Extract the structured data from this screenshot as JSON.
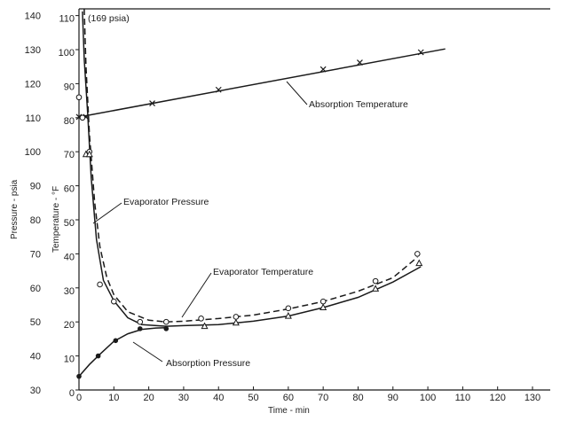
{
  "chart_data": {
    "type": "line",
    "title": "",
    "xlabel": "Time - min",
    "ylabel_left_outer": "Pressure - psia",
    "ylabel_left_inner": "Temperature - °F",
    "xlim": [
      0,
      130
    ],
    "ylim_pressure": [
      30,
      145
    ],
    "ylim_temperature": [
      0,
      115
    ],
    "x_ticks": [
      "0",
      "10",
      "20",
      "30",
      "40",
      "50",
      "60",
      "70",
      "80",
      "90",
      "100",
      "110",
      "120",
      "130"
    ],
    "pressure_ticks": [
      "30",
      "40",
      "50",
      "60",
      "70",
      "80",
      "90",
      "100",
      "110",
      "120",
      "130",
      "140"
    ],
    "temperature_ticks": [
      "0",
      "10",
      "20",
      "30",
      "40",
      "50",
      "60",
      "70",
      "80",
      "90",
      "100",
      "110"
    ],
    "annotations": {
      "peak": "(169 psia)",
      "absorption_temperature": "Absorption Temperature",
      "evaporator_pressure": "Evaporator Pressure",
      "evaporator_temperature": "Evaporator Temperature",
      "absorption_pressure": "Absorption Pressure"
    },
    "series": [
      {
        "name": "Absorption Temperature",
        "axis": "temperature",
        "style": "solid",
        "marker": "x",
        "points": [
          [
            0,
            81
          ],
          [
            2,
            81
          ],
          [
            21,
            85
          ],
          [
            40,
            89
          ],
          [
            70,
            95
          ],
          [
            80.5,
            97
          ],
          [
            98,
            100
          ]
        ],
        "line": [
          [
            0,
            81
          ],
          [
            105,
            101
          ]
        ]
      },
      {
        "name": "Evaporator Pressure",
        "axis": "pressure",
        "style": "dashed",
        "marker": "o",
        "points": [
          [
            0,
            116
          ],
          [
            1,
            110
          ],
          [
            3,
            100
          ],
          [
            6,
            61
          ],
          [
            10,
            56
          ],
          [
            17.5,
            50
          ],
          [
            25,
            50
          ],
          [
            35,
            51
          ],
          [
            45,
            51.5
          ],
          [
            60,
            54
          ],
          [
            70,
            56
          ],
          [
            85,
            62
          ],
          [
            97,
            70
          ]
        ],
        "line": [
          [
            1.5,
            145
          ],
          [
            2,
            125
          ],
          [
            3,
            105
          ],
          [
            4.5,
            85
          ],
          [
            6,
            72
          ],
          [
            8,
            63
          ],
          [
            10,
            58
          ],
          [
            14,
            53
          ],
          [
            20,
            50.5
          ],
          [
            25,
            50
          ],
          [
            30,
            50.2
          ],
          [
            40,
            51
          ],
          [
            50,
            52
          ],
          [
            60,
            53.8
          ],
          [
            70,
            56
          ],
          [
            80,
            59
          ],
          [
            90,
            63
          ],
          [
            97,
            69
          ]
        ]
      },
      {
        "name": "Evaporator Temperature",
        "axis": "temperature",
        "style": "solid",
        "marker": "triangle",
        "points": [
          [
            2,
            70
          ],
          [
            3,
            70
          ],
          [
            36,
            19.5
          ],
          [
            45,
            20.5
          ],
          [
            60,
            22.5
          ],
          [
            70,
            25
          ],
          [
            85,
            30.5
          ],
          [
            97.5,
            38
          ]
        ],
        "line": [
          [
            1,
            112
          ],
          [
            1.5,
            98
          ],
          [
            2.5,
            82
          ],
          [
            3.5,
            63
          ],
          [
            5,
            45
          ],
          [
            7,
            33
          ],
          [
            10,
            27
          ],
          [
            14,
            22
          ],
          [
            18,
            20
          ],
          [
            25,
            19.5
          ],
          [
            30,
            19.7
          ],
          [
            40,
            20
          ],
          [
            50,
            21
          ],
          [
            60,
            22.5
          ],
          [
            70,
            25
          ],
          [
            80,
            28
          ],
          [
            90,
            32.5
          ],
          [
            98,
            37
          ]
        ]
      },
      {
        "name": "Absorption Pressure",
        "axis": "pressure",
        "style": "solid",
        "marker": "dot",
        "points": [
          [
            0,
            34
          ],
          [
            5.5,
            40
          ],
          [
            10.5,
            44.5
          ],
          [
            17.5,
            48
          ],
          [
            25,
            48
          ]
        ],
        "line": [
          [
            0,
            34
          ],
          [
            3,
            37.5
          ],
          [
            6,
            40.5
          ],
          [
            10,
            44.3
          ],
          [
            14,
            46.5
          ],
          [
            18,
            47.8
          ],
          [
            22,
            48.2
          ],
          [
            25,
            48.3
          ]
        ]
      }
    ]
  }
}
